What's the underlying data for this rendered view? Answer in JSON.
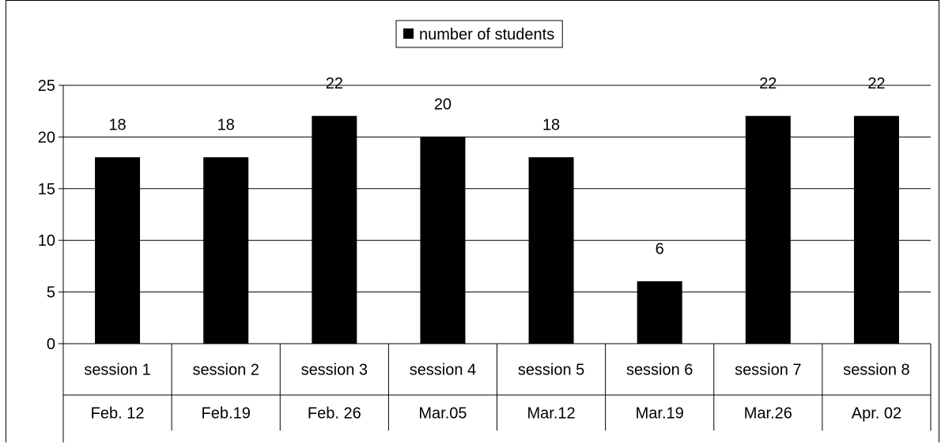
{
  "chart_data": {
    "type": "bar",
    "categories": [
      [
        "session 1",
        "Feb. 12"
      ],
      [
        "session 2",
        "Feb.19"
      ],
      [
        "session 3",
        "Feb. 26"
      ],
      [
        "session 4",
        "Mar.05"
      ],
      [
        "session 5",
        "Mar.12"
      ],
      [
        "session 6",
        "Mar.19"
      ],
      [
        "session 7",
        "Mar.26"
      ],
      [
        "session 8",
        "Apr. 02"
      ]
    ],
    "series": [
      {
        "name": "number of students",
        "values": [
          18,
          18,
          22,
          20,
          18,
          6,
          22,
          22
        ],
        "color": "#000000"
      }
    ],
    "ylim": [
      0,
      25
    ],
    "yticks": [
      0,
      5,
      10,
      15,
      20,
      25
    ],
    "grid": true,
    "legend_position": "top-center",
    "data_labels": true
  }
}
